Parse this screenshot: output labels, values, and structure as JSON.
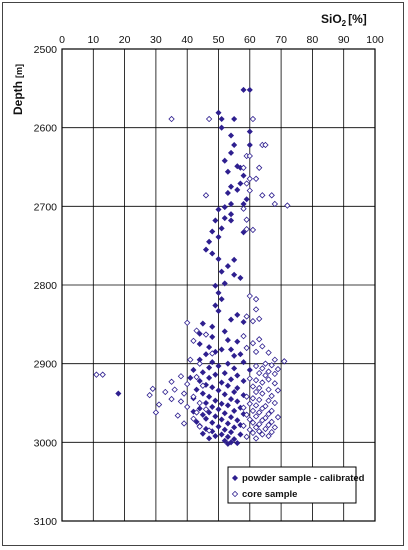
{
  "chart_data": {
    "type": "scatter",
    "xlabel": "SiO",
    "xlabel_sub": "2",
    "xlabel_unit": "[%]",
    "ylabel": "Depth",
    "ylabel_unit": "[m]",
    "xlim": [
      0,
      100
    ],
    "ylim": [
      2500,
      3100
    ],
    "x_ticks": [
      0,
      10,
      20,
      30,
      40,
      50,
      60,
      70,
      80,
      90,
      100
    ],
    "y_ticks": [
      2500,
      2600,
      2700,
      2800,
      2900,
      3000,
      3100
    ],
    "x_axis_position": "top",
    "y_axis_inverted": true,
    "grid": true,
    "legend_position": "bottom-right",
    "colors": {
      "series": "#2e1f8f",
      "grid": "#000000"
    },
    "series": [
      {
        "name": "powder sample - calibrated",
        "marker": "filled-diamond",
        "points": [
          [
            58,
            2552
          ],
          [
            60,
            2552
          ],
          [
            50,
            2581
          ],
          [
            51,
            2589
          ],
          [
            55,
            2589
          ],
          [
            51,
            2600
          ],
          [
            60,
            2605
          ],
          [
            54,
            2610
          ],
          [
            55,
            2622
          ],
          [
            60,
            2622
          ],
          [
            54,
            2632
          ],
          [
            52,
            2642
          ],
          [
            56,
            2649
          ],
          [
            57,
            2651
          ],
          [
            53,
            2656
          ],
          [
            58,
            2661
          ],
          [
            57,
            2671
          ],
          [
            54,
            2675
          ],
          [
            56,
            2679
          ],
          [
            53,
            2683
          ],
          [
            59,
            2691
          ],
          [
            54,
            2697
          ],
          [
            58,
            2697
          ],
          [
            52,
            2701
          ],
          [
            50,
            2704
          ],
          [
            54,
            2710
          ],
          [
            52,
            2715
          ],
          [
            54,
            2718
          ],
          [
            49,
            2718
          ],
          [
            51,
            2728
          ],
          [
            48,
            2732
          ],
          [
            58,
            2733
          ],
          [
            50,
            2739
          ],
          [
            47,
            2745
          ],
          [
            46,
            2755
          ],
          [
            48,
            2760
          ],
          [
            50,
            2767
          ],
          [
            55,
            2768
          ],
          [
            53,
            2776
          ],
          [
            51,
            2783
          ],
          [
            55,
            2787
          ],
          [
            57,
            2791
          ],
          [
            52,
            2798
          ],
          [
            49,
            2801
          ],
          [
            50,
            2810
          ],
          [
            51,
            2818
          ],
          [
            49,
            2826
          ],
          [
            50,
            2833
          ],
          [
            56,
            2838
          ],
          [
            54,
            2844
          ],
          [
            58,
            2847
          ],
          [
            45,
            2849
          ],
          [
            48,
            2853
          ],
          [
            52,
            2859
          ],
          [
            44,
            2862
          ],
          [
            48,
            2866
          ],
          [
            53,
            2870
          ],
          [
            56,
            2872
          ],
          [
            44,
            2875
          ],
          [
            47,
            2879
          ],
          [
            51,
            2882
          ],
          [
            54,
            2882
          ],
          [
            49,
            2885
          ],
          [
            46,
            2888
          ],
          [
            57,
            2888
          ],
          [
            55,
            2890
          ],
          [
            44,
            2895
          ],
          [
            48,
            2898
          ],
          [
            58,
            2898
          ],
          [
            53,
            2900
          ],
          [
            50,
            2903
          ],
          [
            47,
            2905
          ],
          [
            55,
            2906
          ],
          [
            42,
            2908
          ],
          [
            60,
            2908
          ],
          [
            45,
            2911
          ],
          [
            52,
            2912
          ],
          [
            49,
            2914
          ],
          [
            56,
            2915
          ],
          [
            41,
            2918
          ],
          [
            47,
            2918
          ],
          [
            54,
            2920
          ],
          [
            44,
            2922
          ],
          [
            58,
            2922
          ],
          [
            51,
            2924
          ],
          [
            46,
            2927
          ],
          [
            53,
            2928
          ],
          [
            48,
            2930
          ],
          [
            56,
            2931
          ],
          [
            43,
            2933
          ],
          [
            50,
            2934
          ],
          [
            55,
            2936
          ],
          [
            45,
            2938
          ],
          [
            18,
            2938
          ],
          [
            52,
            2939
          ],
          [
            58,
            2940
          ],
          [
            47,
            2942
          ],
          [
            42,
            2944
          ],
          [
            54,
            2945
          ],
          [
            49,
            2947
          ],
          [
            56,
            2948
          ],
          [
            46,
            2950
          ],
          [
            51,
            2951
          ],
          [
            53,
            2953
          ],
          [
            48,
            2955
          ],
          [
            57,
            2956
          ],
          [
            44,
            2957
          ],
          [
            50,
            2958
          ],
          [
            55,
            2960
          ],
          [
            42,
            2961
          ],
          [
            47,
            2962
          ],
          [
            52,
            2963
          ],
          [
            58,
            2964
          ],
          [
            45,
            2965
          ],
          [
            49,
            2967
          ],
          [
            54,
            2968
          ],
          [
            46,
            2970
          ],
          [
            51,
            2971
          ],
          [
            56,
            2972
          ],
          [
            43,
            2974
          ],
          [
            48,
            2975
          ],
          [
            53,
            2976
          ],
          [
            57,
            2978
          ],
          [
            44,
            2979
          ],
          [
            50,
            2980
          ],
          [
            55,
            2981
          ],
          [
            46,
            2983
          ],
          [
            52,
            2984
          ],
          [
            48,
            2986
          ],
          [
            54,
            2987
          ],
          [
            45,
            2989
          ],
          [
            51,
            2990
          ],
          [
            57,
            2990
          ],
          [
            49,
            2992
          ],
          [
            53,
            2993
          ],
          [
            47,
            2995
          ],
          [
            55,
            2996
          ],
          [
            52,
            2998
          ],
          [
            54,
            3000
          ],
          [
            56,
            3001
          ],
          [
            53,
            3002
          ]
        ]
      },
      {
        "name": "core sample",
        "marker": "open-diamond",
        "points": [
          [
            35,
            2589
          ],
          [
            47,
            2589
          ],
          [
            61,
            2589
          ],
          [
            64,
            2622
          ],
          [
            65,
            2622
          ],
          [
            59,
            2636
          ],
          [
            60,
            2636
          ],
          [
            63,
            2651
          ],
          [
            58,
            2651
          ],
          [
            60,
            2665
          ],
          [
            62,
            2665
          ],
          [
            59,
            2671
          ],
          [
            60,
            2680
          ],
          [
            46,
            2686
          ],
          [
            67,
            2686
          ],
          [
            64,
            2686
          ],
          [
            68,
            2697
          ],
          [
            72,
            2699
          ],
          [
            58,
            2703
          ],
          [
            59,
            2717
          ],
          [
            59,
            2729
          ],
          [
            61,
            2730
          ],
          [
            60,
            2814
          ],
          [
            62,
            2818
          ],
          [
            62,
            2831
          ],
          [
            59,
            2840
          ],
          [
            63,
            2843
          ],
          [
            61,
            2846
          ],
          [
            40,
            2848
          ],
          [
            43,
            2858
          ],
          [
            46,
            2863
          ],
          [
            42,
            2871
          ],
          [
            58,
            2865
          ],
          [
            63,
            2869
          ],
          [
            61,
            2874
          ],
          [
            64,
            2878
          ],
          [
            59,
            2880
          ],
          [
            62,
            2885
          ],
          [
            66,
            2886
          ],
          [
            48,
            2887
          ],
          [
            41,
            2895
          ],
          [
            44,
            2900
          ],
          [
            68,
            2895
          ],
          [
            71,
            2897
          ],
          [
            65,
            2900
          ],
          [
            67,
            2902
          ],
          [
            62,
            2903
          ],
          [
            64,
            2906
          ],
          [
            69,
            2907
          ],
          [
            66,
            2910
          ],
          [
            63,
            2912
          ],
          [
            68,
            2913
          ],
          [
            11,
            2914
          ],
          [
            13,
            2914
          ],
          [
            38,
            2916
          ],
          [
            43,
            2917
          ],
          [
            65,
            2915
          ],
          [
            60,
            2919
          ],
          [
            62,
            2921
          ],
          [
            35,
            2923
          ],
          [
            66,
            2920
          ],
          [
            64,
            2924
          ],
          [
            40,
            2926
          ],
          [
            68,
            2925
          ],
          [
            45,
            2928
          ],
          [
            61,
            2929
          ],
          [
            63,
            2931
          ],
          [
            29,
            2932
          ],
          [
            36,
            2933
          ],
          [
            66,
            2933
          ],
          [
            69,
            2934
          ],
          [
            33,
            2936
          ],
          [
            39,
            2938
          ],
          [
            62,
            2936
          ],
          [
            64,
            2938
          ],
          [
            28,
            2940
          ],
          [
            42,
            2942
          ],
          [
            67,
            2941
          ],
          [
            59,
            2942
          ],
          [
            35,
            2945
          ],
          [
            61,
            2944
          ],
          [
            63,
            2946
          ],
          [
            38,
            2948
          ],
          [
            66,
            2947
          ],
          [
            44,
            2950
          ],
          [
            68,
            2950
          ],
          [
            60,
            2951
          ],
          [
            31,
            2952
          ],
          [
            62,
            2953
          ],
          [
            40,
            2955
          ],
          [
            65,
            2954
          ],
          [
            58,
            2956
          ],
          [
            64,
            2957
          ],
          [
            46,
            2958
          ],
          [
            61,
            2960
          ],
          [
            67,
            2960
          ],
          [
            30,
            2962
          ],
          [
            43,
            2962
          ],
          [
            63,
            2962
          ],
          [
            66,
            2964
          ],
          [
            59,
            2965
          ],
          [
            37,
            2966
          ],
          [
            62,
            2967
          ],
          [
            69,
            2968
          ],
          [
            65,
            2969
          ],
          [
            42,
            2970
          ],
          [
            60,
            2971
          ],
          [
            64,
            2972
          ],
          [
            67,
            2974
          ],
          [
            61,
            2975
          ],
          [
            39,
            2976
          ],
          [
            63,
            2977
          ],
          [
            66,
            2978
          ],
          [
            58,
            2979
          ],
          [
            44,
            2980
          ],
          [
            62,
            2981
          ],
          [
            68,
            2981
          ],
          [
            65,
            2983
          ],
          [
            60,
            2984
          ],
          [
            47,
            2985
          ],
          [
            63,
            2986
          ],
          [
            67,
            2987
          ],
          [
            61,
            2988
          ],
          [
            64,
            2990
          ],
          [
            66,
            2992
          ],
          [
            59,
            2993
          ],
          [
            62,
            2995
          ]
        ]
      }
    ]
  }
}
